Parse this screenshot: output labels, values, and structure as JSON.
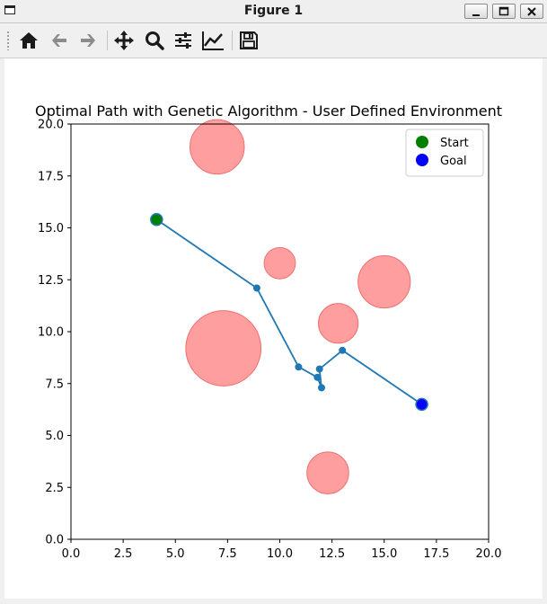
{
  "window": {
    "title": "Figure 1"
  },
  "toolbar": {
    "buttons": [
      {
        "name": "home",
        "icon": "home-icon"
      },
      {
        "name": "back",
        "icon": "arrow-left-icon"
      },
      {
        "name": "forward",
        "icon": "arrow-right-icon"
      },
      {
        "name": "pan",
        "icon": "move-icon"
      },
      {
        "name": "zoom",
        "icon": "magnifier-icon"
      },
      {
        "name": "configure-subplots",
        "icon": "sliders-icon"
      },
      {
        "name": "edit-axis",
        "icon": "line-chart-icon"
      },
      {
        "name": "save",
        "icon": "floppy-disk-icon"
      }
    ]
  },
  "colors": {
    "path": "#1f77b4",
    "obstacle_fill": "#ff9999",
    "obstacle_edge": "#f07070",
    "start": "#008000",
    "goal": "#0000ff"
  },
  "chart_data": {
    "type": "scatter",
    "title": "Optimal Path with Genetic Algorithm - User Defined Environment",
    "xlabel": "",
    "ylabel": "",
    "xlim": [
      0,
      20
    ],
    "ylim": [
      0,
      20
    ],
    "xticks": [
      "0.0",
      "2.5",
      "5.0",
      "7.5",
      "10.0",
      "12.5",
      "15.0",
      "17.5",
      "20.0"
    ],
    "yticks": [
      "0.0",
      "2.5",
      "5.0",
      "7.5",
      "10.0",
      "12.5",
      "15.0",
      "17.5",
      "20.0"
    ],
    "grid": false,
    "legend_position": "top-right",
    "legend": [
      {
        "label": "Start",
        "color": "#008000"
      },
      {
        "label": "Goal",
        "color": "#0000ff"
      }
    ],
    "obstacles": [
      {
        "x": 7.0,
        "y": 18.9,
        "r": 1.3
      },
      {
        "x": 10.0,
        "y": 13.3,
        "r": 0.75
      },
      {
        "x": 15.0,
        "y": 12.4,
        "r": 1.25
      },
      {
        "x": 12.8,
        "y": 10.4,
        "r": 0.95
      },
      {
        "x": 7.3,
        "y": 9.2,
        "r": 1.8
      },
      {
        "x": 12.3,
        "y": 3.2,
        "r": 1.0
      }
    ],
    "path": [
      {
        "x": 4.1,
        "y": 15.4
      },
      {
        "x": 8.9,
        "y": 12.1
      },
      {
        "x": 10.9,
        "y": 8.3
      },
      {
        "x": 11.8,
        "y": 7.8
      },
      {
        "x": 12.0,
        "y": 7.3
      },
      {
        "x": 11.9,
        "y": 8.2
      },
      {
        "x": 13.0,
        "y": 9.1
      },
      {
        "x": 16.8,
        "y": 6.5
      }
    ],
    "start": {
      "x": 4.1,
      "y": 15.4
    },
    "goal": {
      "x": 16.8,
      "y": 6.5
    }
  }
}
